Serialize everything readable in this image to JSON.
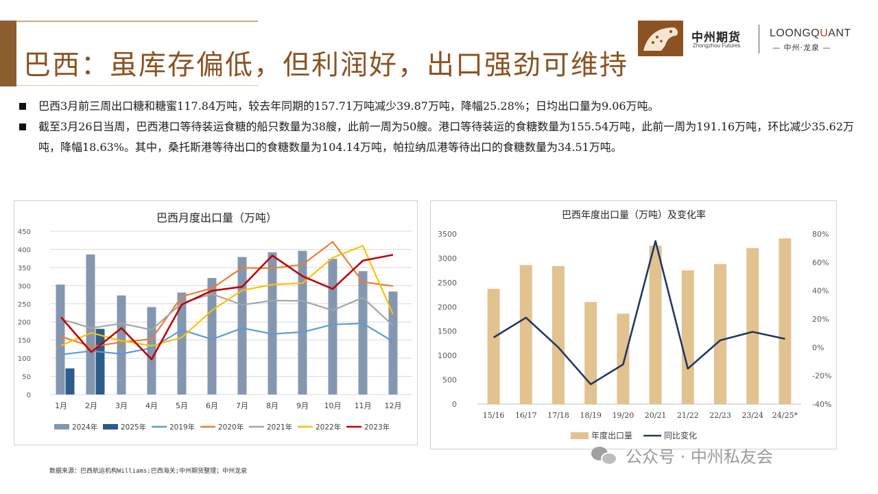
{
  "header": {
    "title": "巴西：虽库存偏低，但利润好，出口强劲可维持",
    "logo_cn": "中州期货",
    "logo_en": "Zhongzhou Futures",
    "lq_prefix": "LOONGQ",
    "lq_highlight": "U",
    "lq_suffix": "ANT",
    "lq_cn": "— 中州·龙泉 —"
  },
  "bullets": [
    "巴西3月前三周出口糖和糖蜜117.84万吨，较去年同期的157.71万吨减少39.87万吨，降幅25.28%；日均出口量为9.06万吨。",
    "截至3月26日当周，巴西港口等待装运食糖的船只数量为38艘，此前一周为50艘。港口等待装运的食糖数量为155.54万吨，此前一周为191.16万吨，环比减少35.62万吨，降幅18.63%。其中，桑托斯港等待出口的食糖数量为104.14万吨，帕拉纳瓜港等待出口的食糖数量为34.51万吨。"
  ],
  "source": "数据来源：巴西航运机构Williams;巴西海关;中州期货整理；中州龙泉",
  "watermark": "公众号 · 中州私友会",
  "chart_data": [
    {
      "type": "bar",
      "title": "巴西月度出口量（万吨）",
      "categories": [
        "1月",
        "2月",
        "3月",
        "4月",
        "5月",
        "6月",
        "7月",
        "8月",
        "9月",
        "10月",
        "11月",
        "12月"
      ],
      "ylim": [
        0,
        450
      ],
      "yticks": [
        0,
        50,
        100,
        150,
        200,
        250,
        300,
        350,
        400,
        450
      ],
      "grid": true,
      "legend": "bottom",
      "bar_series": [
        {
          "name": "2024年",
          "color": "#8497b0",
          "values": [
            303,
            386,
            273,
            241,
            281,
            321,
            379,
            392,
            396,
            374,
            340,
            284
          ]
        },
        {
          "name": "2025年",
          "color": "#2e5c8a",
          "values": [
            72,
            181,
            null,
            null,
            null,
            null,
            null,
            null,
            null,
            null,
            null,
            null
          ]
        }
      ],
      "line_series": [
        {
          "name": "2019年",
          "color": "#5b9bd5",
          "values": [
            110,
            120,
            112,
            128,
            178,
            152,
            183,
            167,
            172,
            193,
            196,
            146
          ]
        },
        {
          "name": "2020年",
          "color": "#ed7d31",
          "values": [
            160,
            132,
            144,
            153,
            270,
            293,
            349,
            348,
            358,
            421,
            310,
            299
          ]
        },
        {
          "name": "2021年",
          "color": "#a5a5a5",
          "values": [
            208,
            183,
            196,
            178,
            252,
            277,
            247,
            259,
            258,
            232,
            267,
            190
          ]
        },
        {
          "name": "2022年",
          "color": "#ffc000",
          "values": [
            135,
            170,
            148,
            134,
            157,
            232,
            287,
            303,
            307,
            377,
            410,
            221
          ]
        },
        {
          "name": "2023年",
          "color": "#c00000",
          "values": [
            213,
            117,
            183,
            97,
            248,
            286,
            297,
            383,
            326,
            291,
            369,
            385
          ]
        }
      ]
    },
    {
      "type": "bar",
      "title": "巴西年度出口量（万吨）及变化率",
      "categories": [
        "15/16",
        "16/17",
        "17/18",
        "18/19",
        "19/20",
        "20/21",
        "21/22",
        "22/23",
        "23/24",
        "24/25*"
      ],
      "ylim": [
        0,
        3500
      ],
      "yticks": [
        0,
        500,
        1000,
        1500,
        2000,
        2500,
        3000,
        3500
      ],
      "y2lim": [
        -40,
        80
      ],
      "y2ticks": [
        "-40%",
        "-20%",
        "0%",
        "20%",
        "40%",
        "60%",
        "80%"
      ],
      "grid": false,
      "legend": "bottom",
      "bar_series": [
        {
          "name": "年度出口量",
          "color": "#e2c28e",
          "values": [
            2370,
            2860,
            2840,
            2100,
            1860,
            3260,
            2750,
            2880,
            3210,
            3410
          ]
        }
      ],
      "line_series": [
        {
          "name": "同比变化",
          "color": "#1f3864",
          "axis": "right",
          "values": [
            7,
            21,
            0,
            -26,
            -12,
            75,
            -15,
            5,
            11,
            6
          ]
        }
      ]
    }
  ]
}
